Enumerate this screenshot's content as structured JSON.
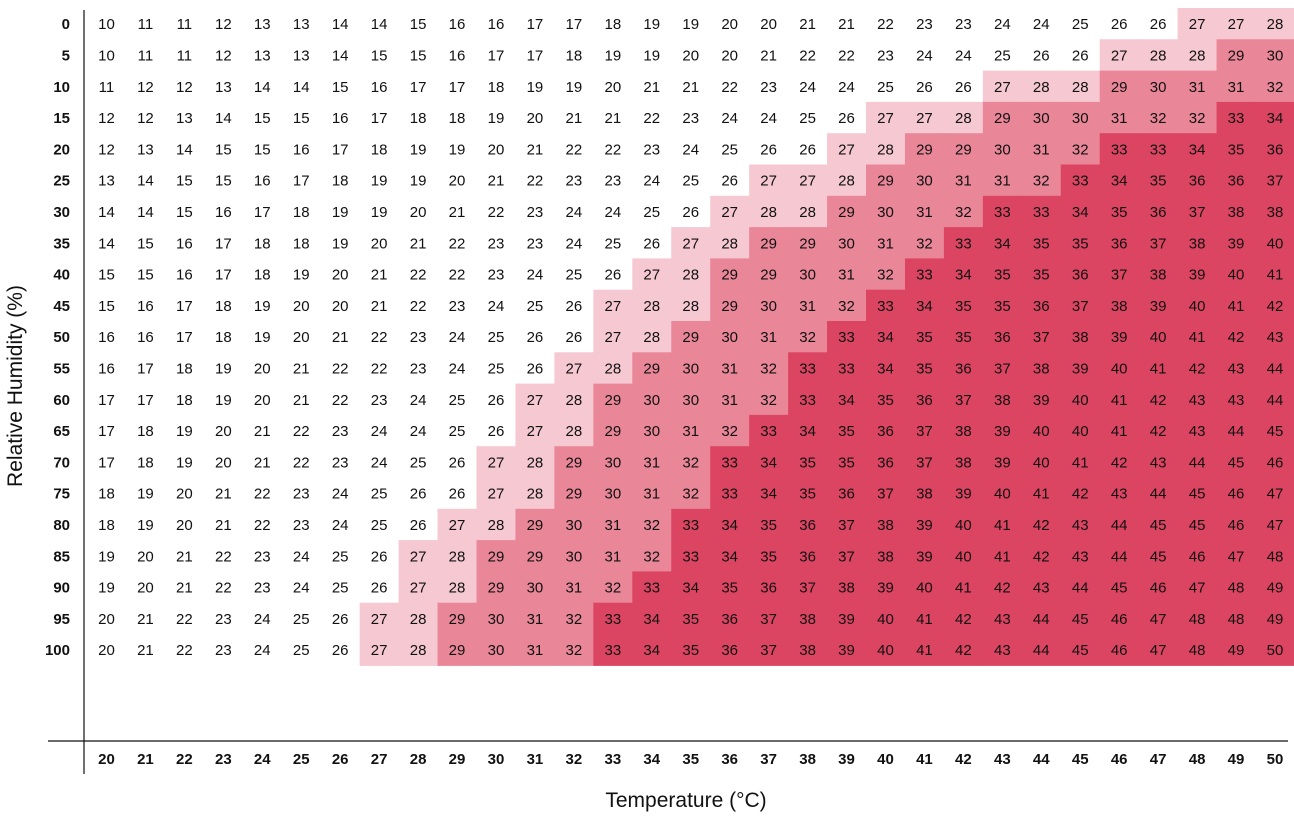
{
  "chart_data": {
    "type": "heatmap",
    "xlabel": "Temperature (°C)",
    "ylabel": "Relative Humidity (%)",
    "x": [
      20,
      21,
      22,
      23,
      24,
      25,
      26,
      27,
      28,
      29,
      30,
      31,
      32,
      33,
      34,
      35,
      36,
      37,
      38,
      39,
      40,
      41,
      42,
      43,
      44,
      45,
      46,
      47,
      48,
      49,
      50
    ],
    "y": [
      0,
      5,
      10,
      15,
      20,
      25,
      30,
      35,
      40,
      45,
      50,
      55,
      60,
      65,
      70,
      75,
      80,
      85,
      90,
      95,
      100
    ],
    "values": [
      [
        10,
        11,
        11,
        12,
        13,
        13,
        14,
        14,
        15,
        16,
        16,
        17,
        17,
        18,
        19,
        19,
        20,
        20,
        21,
        21,
        22,
        23,
        23,
        24,
        24,
        25,
        26,
        26,
        27,
        27,
        28
      ],
      [
        10,
        11,
        11,
        12,
        13,
        13,
        14,
        15,
        15,
        16,
        17,
        17,
        18,
        19,
        19,
        20,
        20,
        21,
        22,
        22,
        23,
        24,
        24,
        25,
        26,
        26,
        27,
        28,
        28,
        29,
        30
      ],
      [
        11,
        12,
        12,
        13,
        14,
        14,
        15,
        16,
        17,
        17,
        18,
        19,
        19,
        20,
        21,
        21,
        22,
        23,
        24,
        24,
        25,
        26,
        26,
        27,
        28,
        28,
        29,
        30,
        31,
        31,
        32
      ],
      [
        12,
        12,
        13,
        14,
        15,
        15,
        16,
        17,
        18,
        18,
        19,
        20,
        21,
        21,
        22,
        23,
        24,
        24,
        25,
        26,
        27,
        27,
        28,
        29,
        30,
        30,
        31,
        32,
        32,
        33,
        34
      ],
      [
        12,
        13,
        14,
        15,
        15,
        16,
        17,
        18,
        19,
        19,
        20,
        21,
        22,
        22,
        23,
        24,
        25,
        26,
        26,
        27,
        28,
        29,
        29,
        30,
        31,
        32,
        33,
        33,
        34,
        35,
        36
      ],
      [
        13,
        14,
        15,
        15,
        16,
        17,
        18,
        19,
        19,
        20,
        21,
        22,
        23,
        23,
        24,
        25,
        26,
        27,
        27,
        28,
        29,
        30,
        31,
        31,
        32,
        33,
        34,
        35,
        36,
        36,
        37
      ],
      [
        14,
        14,
        15,
        16,
        17,
        18,
        19,
        19,
        20,
        21,
        22,
        23,
        24,
        24,
        25,
        26,
        27,
        28,
        28,
        29,
        30,
        31,
        32,
        33,
        33,
        34,
        35,
        36,
        37,
        38,
        38
      ],
      [
        14,
        15,
        16,
        17,
        18,
        18,
        19,
        20,
        21,
        22,
        23,
        23,
        24,
        25,
        26,
        27,
        28,
        29,
        29,
        30,
        31,
        32,
        33,
        34,
        35,
        35,
        36,
        37,
        38,
        39,
        40
      ],
      [
        15,
        15,
        16,
        17,
        18,
        19,
        20,
        21,
        22,
        22,
        23,
        24,
        25,
        26,
        27,
        28,
        29,
        29,
        30,
        31,
        32,
        33,
        34,
        35,
        35,
        36,
        37,
        38,
        39,
        40,
        41
      ],
      [
        15,
        16,
        17,
        18,
        19,
        20,
        20,
        21,
        22,
        23,
        24,
        25,
        26,
        27,
        28,
        28,
        29,
        30,
        31,
        32,
        33,
        34,
        35,
        35,
        36,
        37,
        38,
        39,
        40,
        41,
        42
      ],
      [
        16,
        16,
        17,
        18,
        19,
        20,
        21,
        22,
        23,
        24,
        25,
        26,
        26,
        27,
        28,
        29,
        30,
        31,
        32,
        33,
        34,
        35,
        35,
        36,
        37,
        38,
        39,
        40,
        41,
        42,
        43
      ],
      [
        16,
        17,
        18,
        19,
        20,
        21,
        22,
        22,
        23,
        24,
        25,
        26,
        27,
        28,
        29,
        30,
        31,
        32,
        33,
        33,
        34,
        35,
        36,
        37,
        38,
        39,
        40,
        41,
        42,
        43,
        44
      ],
      [
        17,
        17,
        18,
        19,
        20,
        21,
        22,
        23,
        24,
        25,
        26,
        27,
        28,
        29,
        30,
        30,
        31,
        32,
        33,
        34,
        35,
        36,
        37,
        38,
        39,
        40,
        41,
        42,
        43,
        43,
        44
      ],
      [
        17,
        18,
        19,
        20,
        21,
        22,
        23,
        24,
        24,
        25,
        26,
        27,
        28,
        29,
        30,
        31,
        32,
        33,
        34,
        35,
        36,
        37,
        38,
        39,
        40,
        40,
        41,
        42,
        43,
        44,
        45
      ],
      [
        17,
        18,
        19,
        20,
        21,
        22,
        23,
        24,
        25,
        26,
        27,
        28,
        29,
        30,
        31,
        32,
        33,
        34,
        35,
        35,
        36,
        37,
        38,
        39,
        40,
        41,
        42,
        43,
        44,
        45,
        46
      ],
      [
        18,
        19,
        20,
        21,
        22,
        23,
        24,
        25,
        26,
        26,
        27,
        28,
        29,
        30,
        31,
        32,
        33,
        34,
        35,
        36,
        37,
        38,
        39,
        40,
        41,
        42,
        43,
        44,
        45,
        46,
        47
      ],
      [
        18,
        19,
        20,
        21,
        22,
        23,
        24,
        25,
        26,
        27,
        28,
        29,
        30,
        31,
        32,
        33,
        34,
        35,
        36,
        37,
        38,
        39,
        40,
        41,
        42,
        43,
        44,
        45,
        45,
        46,
        47
      ],
      [
        19,
        20,
        21,
        22,
        23,
        24,
        25,
        26,
        27,
        28,
        29,
        29,
        30,
        31,
        32,
        33,
        34,
        35,
        36,
        37,
        38,
        39,
        40,
        41,
        42,
        43,
        44,
        45,
        46,
        47,
        48
      ],
      [
        19,
        20,
        21,
        22,
        23,
        24,
        25,
        26,
        27,
        28,
        29,
        30,
        31,
        32,
        33,
        34,
        35,
        36,
        37,
        38,
        39,
        40,
        41,
        42,
        43,
        44,
        45,
        46,
        47,
        48,
        49
      ],
      [
        20,
        21,
        22,
        23,
        24,
        25,
        26,
        27,
        28,
        29,
        30,
        31,
        32,
        33,
        34,
        35,
        36,
        37,
        38,
        39,
        40,
        41,
        42,
        43,
        44,
        45,
        46,
        47,
        48,
        48,
        49
      ],
      [
        20,
        21,
        22,
        23,
        24,
        25,
        26,
        27,
        28,
        29,
        30,
        31,
        32,
        33,
        34,
        35,
        36,
        37,
        38,
        39,
        40,
        41,
        42,
        43,
        44,
        45,
        46,
        47,
        48,
        49,
        50
      ]
    ],
    "color_scale": [
      {
        "min": 0,
        "max": 26,
        "color": "#ffffff"
      },
      {
        "min": 27,
        "max": 28,
        "color": "#f6c8d2"
      },
      {
        "min": 29,
        "max": 32,
        "color": "#e98799"
      },
      {
        "min": 33,
        "max": 99,
        "color": "#dc4562"
      }
    ],
    "grid": false,
    "colors": {
      "text": "#111111",
      "axis": "#111111"
    }
  }
}
